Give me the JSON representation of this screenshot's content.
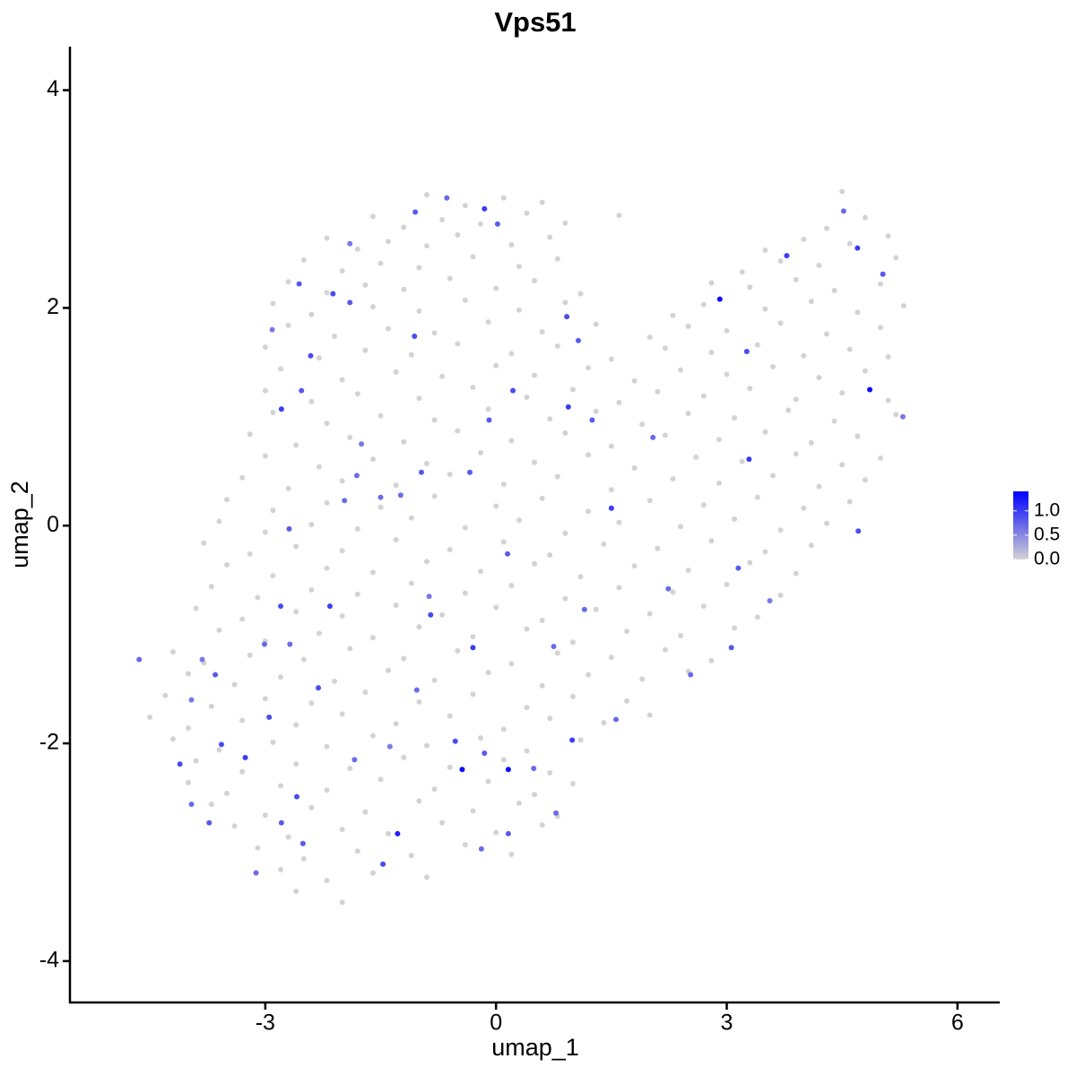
{
  "chart_data": {
    "type": "scatter",
    "title": "Vps51",
    "x_label": "umap_1",
    "y_label": "umap_2",
    "xlim": [
      -5.54,
      6.55
    ],
    "ylim": [
      -4.38,
      4.4
    ],
    "xticks": [
      -3,
      0,
      3,
      6
    ],
    "yticks": [
      -4,
      -2,
      0,
      2,
      4
    ],
    "low_color": "#d3d3d3",
    "high_color": "#0000ff",
    "clim": [
      0,
      1.4
    ],
    "cticks": [
      {
        "value": 0,
        "label": "0.0"
      },
      {
        "value": 0.5,
        "label": "0.5"
      },
      {
        "value": 1,
        "label": "1.0"
      }
    ],
    "x": [
      -0.9,
      -0.4,
      0.1,
      0.6,
      4.5,
      -1.6,
      -1.2,
      -0.7,
      -0.2,
      0.4,
      0.9,
      1.6,
      4.3,
      4.8,
      -2.2,
      -1.8,
      -1.4,
      -0.9,
      -0.5,
      0.2,
      0.7,
      3.5,
      4.0,
      4.6,
      5.1,
      -2.5,
      -2.0,
      -1.5,
      -1.0,
      -0.3,
      0.3,
      0.8,
      3.2,
      3.7,
      4.2,
      5.2,
      -2.7,
      -2.2,
      -1.7,
      -1.2,
      -0.6,
      0.0,
      0.5,
      1.1,
      2.8,
      3.3,
      3.9,
      4.4,
      5.0,
      -2.9,
      -2.4,
      -1.6,
      -1.0,
      -0.4,
      0.3,
      0.9,
      2.3,
      2.7,
      3.5,
      4.1,
      4.7,
      5.3,
      -2.7,
      -2.1,
      -1.4,
      -0.8,
      -0.1,
      0.6,
      1.3,
      2.0,
      2.5,
      3.0,
      3.7,
      4.3,
      5.0,
      -3.0,
      -2.3,
      -1.7,
      -1.1,
      -0.5,
      0.2,
      0.8,
      1.5,
      2.2,
      2.8,
      3.4,
      4.0,
      4.6,
      5.1,
      -2.8,
      -2.0,
      -1.3,
      -0.7,
      0.0,
      0.5,
      1.2,
      1.8,
      2.4,
      3.0,
      3.6,
      4.2,
      4.8,
      -3.0,
      -2.4,
      -1.8,
      -1.0,
      -0.3,
      0.4,
      1.0,
      1.6,
      2.1,
      2.7,
      3.3,
      3.9,
      4.5,
      5.1,
      -2.9,
      -2.2,
      -1.5,
      -0.8,
      -0.1,
      0.7,
      1.3,
      1.9,
      2.5,
      3.1,
      3.8,
      4.4,
      5.2,
      -3.2,
      -2.6,
      -1.9,
      -1.2,
      -0.5,
      0.2,
      0.9,
      1.5,
      2.2,
      2.9,
      3.5,
      4.1,
      4.7,
      -3.0,
      -2.3,
      -1.6,
      -0.9,
      -0.2,
      0.5,
      1.2,
      1.8,
      2.6,
      3.2,
      3.9,
      4.5,
      5.0,
      -3.3,
      -2.7,
      -2.0,
      -1.3,
      -0.6,
      0.1,
      0.8,
      1.5,
      2.3,
      2.9,
      3.6,
      4.2,
      4.8,
      -3.5,
      -2.9,
      -2.2,
      -1.5,
      -0.8,
      0.0,
      0.6,
      1.2,
      2.0,
      2.7,
      3.4,
      4.0,
      4.6,
      -3.6,
      -3.0,
      -2.4,
      -1.8,
      -1.1,
      -0.4,
      0.3,
      0.9,
      1.6,
      2.4,
      3.1,
      3.7,
      4.3,
      -3.8,
      -3.2,
      -2.6,
      -2.0,
      -1.3,
      -0.6,
      0.1,
      0.7,
      1.4,
      2.1,
      2.8,
      3.5,
      4.1,
      -3.5,
      -2.9,
      -2.2,
      -1.6,
      -0.9,
      -0.2,
      0.5,
      1.1,
      1.8,
      2.5,
      3.3,
      3.9,
      -3.7,
      -3.1,
      -2.4,
      -1.8,
      -1.1,
      -0.4,
      0.2,
      0.9,
      1.6,
      2.3,
      3.0,
      3.7,
      -3.9,
      -3.3,
      -2.6,
      -2.0,
      -1.3,
      -0.7,
      0.0,
      0.6,
      1.3,
      2.0,
      2.7,
      3.4,
      -3.6,
      -3.0,
      -2.3,
      -1.6,
      -1.0,
      -0.3,
      0.4,
      1.0,
      1.7,
      2.4,
      3.1,
      -4.2,
      -3.8,
      -3.2,
      -2.5,
      -1.9,
      -1.2,
      -0.5,
      0.2,
      0.8,
      1.5,
      2.2,
      2.8,
      -4.0,
      -3.4,
      -2.8,
      -2.1,
      -1.4,
      -0.8,
      -0.1,
      0.6,
      1.2,
      1.9,
      2.5,
      -4.3,
      -3.7,
      -3.0,
      -2.4,
      -1.7,
      -1.0,
      -0.3,
      0.4,
      1.0,
      1.7,
      -4.5,
      -4.0,
      -3.3,
      -2.6,
      -2.0,
      -1.3,
      -0.6,
      0.1,
      0.7,
      1.4,
      2.0,
      -4.2,
      -3.6,
      -2.9,
      -2.2,
      -1.6,
      -0.9,
      -0.2,
      0.4,
      1.1,
      -3.9,
      -3.3,
      -2.6,
      -1.9,
      -1.2,
      -0.6,
      0.1,
      0.7,
      -4.0,
      -3.5,
      -2.8,
      -2.2,
      -1.5,
      -0.8,
      -0.1,
      0.5,
      1.0,
      -3.7,
      -3.0,
      -2.4,
      -1.7,
      -1.0,
      -0.3,
      0.3,
      0.8,
      -3.4,
      -2.7,
      -2.0,
      -1.4,
      -0.7,
      0.0,
      0.6,
      -3.1,
      -2.5,
      -1.8,
      -1.1,
      -0.4,
      0.2,
      -2.8,
      -2.2,
      -1.6,
      -0.9,
      -2.6,
      -2.0,
      -1.05,
      -0.15,
      0.02,
      -0.64,
      -1.9,
      -2.56,
      -2.12,
      -1.9,
      -2.91,
      -2.41,
      -1.06,
      -2.79,
      -2.53,
      0.92,
      1.07,
      0.22,
      -0.09,
      1.25,
      0.94,
      2.04,
      1.5,
      2.91,
      3.78,
      3.26,
      4.86,
      4.71,
      4.7,
      4.52,
      5.03,
      5.29,
      3.29,
      3.15,
      3.06,
      3.56,
      2.53,
      2.24,
      1.56,
      0.99,
      0.49,
      0.16,
      -0.44,
      -0.53,
      -0.15,
      -1.28,
      -1.47,
      -2.51,
      -2.79,
      -3.26,
      -3.57,
      -4.11,
      -3.96,
      -3.73,
      -3.12,
      -2.59,
      -2.31,
      -2.8,
      -3.01,
      -2.95,
      -3.65,
      -3.96,
      -3.82,
      -4.64,
      -2.16,
      -2.68,
      -2.69,
      -1.97,
      -0.85,
      -0.3,
      0.15,
      1.15,
      0.75,
      -1.24,
      -0.97,
      -1.5,
      -1.81,
      -1.75,
      -0.34,
      -0.87,
      -1.03,
      -1.84,
      -1.38,
      0.78,
      0.16,
      -0.19
    ],
    "y": [
      3.04,
      2.94,
      3.01,
      2.97,
      3.07,
      2.84,
      2.74,
      2.81,
      2.77,
      2.87,
      2.78,
      2.85,
      2.73,
      2.83,
      2.64,
      2.54,
      2.61,
      2.57,
      2.67,
      2.58,
      2.65,
      2.53,
      2.63,
      2.59,
      2.66,
      2.44,
      2.34,
      2.41,
      2.37,
      2.47,
      2.38,
      2.45,
      2.33,
      2.43,
      2.39,
      2.46,
      2.24,
      2.14,
      2.21,
      2.17,
      2.27,
      2.18,
      2.25,
      2.13,
      2.23,
      2.19,
      2.26,
      2.16,
      2.22,
      2.04,
      1.94,
      2.01,
      1.97,
      2.07,
      1.98,
      2.05,
      1.93,
      2.03,
      1.99,
      2.06,
      1.96,
      2.02,
      1.84,
      1.74,
      1.81,
      1.77,
      1.87,
      1.78,
      1.85,
      1.73,
      1.83,
      1.79,
      1.86,
      1.76,
      1.82,
      1.64,
      1.54,
      1.61,
      1.57,
      1.67,
      1.58,
      1.65,
      1.53,
      1.63,
      1.59,
      1.66,
      1.56,
      1.62,
      1.55,
      1.44,
      1.34,
      1.41,
      1.37,
      1.47,
      1.38,
      1.45,
      1.33,
      1.43,
      1.39,
      1.46,
      1.36,
      1.42,
      1.24,
      1.14,
      1.21,
      1.17,
      1.27,
      1.18,
      1.25,
      1.13,
      1.23,
      1.19,
      1.26,
      1.16,
      1.22,
      1.15,
      1.04,
      0.94,
      1.01,
      0.97,
      1.07,
      0.98,
      1.05,
      0.93,
      1.03,
      0.99,
      1.06,
      0.96,
      1.02,
      0.84,
      0.74,
      0.81,
      0.77,
      0.87,
      0.78,
      0.85,
      0.73,
      0.83,
      0.79,
      0.86,
      0.76,
      0.82,
      0.64,
      0.54,
      0.61,
      0.57,
      0.67,
      0.58,
      0.65,
      0.53,
      0.63,
      0.59,
      0.66,
      0.56,
      0.62,
      0.44,
      0.34,
      0.41,
      0.37,
      0.47,
      0.38,
      0.45,
      0.33,
      0.43,
      0.39,
      0.46,
      0.36,
      0.42,
      0.24,
      0.14,
      0.21,
      0.17,
      0.27,
      0.18,
      0.25,
      0.13,
      0.23,
      0.19,
      0.26,
      0.16,
      0.22,
      0.04,
      -0.06,
      0.01,
      -0.03,
      0.07,
      -0.02,
      0.05,
      -0.07,
      0.03,
      -0.01,
      0.06,
      -0.04,
      0.02,
      -0.16,
      -0.26,
      -0.19,
      -0.23,
      -0.13,
      -0.22,
      -0.15,
      -0.27,
      -0.17,
      -0.21,
      -0.14,
      -0.24,
      -0.18,
      -0.36,
      -0.46,
      -0.39,
      -0.43,
      -0.33,
      -0.42,
      -0.35,
      -0.47,
      -0.37,
      -0.41,
      -0.34,
      -0.44,
      -0.56,
      -0.66,
      -0.59,
      -0.63,
      -0.53,
      -0.62,
      -0.55,
      -0.67,
      -0.57,
      -0.61,
      -0.54,
      -0.64,
      -0.76,
      -0.86,
      -0.79,
      -0.83,
      -0.73,
      -0.82,
      -0.75,
      -0.87,
      -0.77,
      -0.81,
      -0.74,
      -0.84,
      -0.96,
      -1.06,
      -0.99,
      -1.03,
      -0.93,
      -1.02,
      -0.95,
      -1.07,
      -0.97,
      -1.01,
      -0.94,
      -1.16,
      -1.26,
      -1.19,
      -1.23,
      -1.13,
      -1.22,
      -1.15,
      -1.27,
      -1.17,
      -1.21,
      -1.14,
      -1.24,
      -1.36,
      -1.46,
      -1.39,
      -1.43,
      -1.33,
      -1.42,
      -1.35,
      -1.47,
      -1.37,
      -1.41,
      -1.34,
      -1.56,
      -1.66,
      -1.59,
      -1.63,
      -1.53,
      -1.62,
      -1.55,
      -1.67,
      -1.57,
      -1.61,
      -1.76,
      -1.86,
      -1.79,
      -1.83,
      -1.73,
      -1.82,
      -1.75,
      -1.87,
      -1.77,
      -1.81,
      -1.74,
      -1.96,
      -2.06,
      -1.99,
      -2.03,
      -1.93,
      -2.02,
      -1.95,
      -2.07,
      -1.97,
      -2.16,
      -2.26,
      -2.19,
      -2.23,
      -2.13,
      -2.22,
      -2.15,
      -2.27,
      -2.36,
      -2.46,
      -2.39,
      -2.43,
      -2.33,
      -2.42,
      -2.35,
      -2.47,
      -2.37,
      -2.56,
      -2.66,
      -2.59,
      -2.63,
      -2.53,
      -2.62,
      -2.55,
      -2.67,
      -2.76,
      -2.86,
      -2.79,
      -2.83,
      -2.73,
      -2.82,
      -2.75,
      -2.96,
      -3.06,
      -2.99,
      -3.03,
      -2.93,
      -3.02,
      -3.16,
      -3.26,
      -3.19,
      -3.23,
      -3.36,
      -3.46,
      2.88,
      2.91,
      2.77,
      3.01,
      2.59,
      2.22,
      2.13,
      2.05,
      1.8,
      1.56,
      1.74,
      1.07,
      1.24,
      1.92,
      1.7,
      1.24,
      0.97,
      0.97,
      1.09,
      0.81,
      0.16,
      2.08,
      2.48,
      1.6,
      1.25,
      -0.05,
      2.55,
      2.89,
      2.31,
      1.0,
      0.61,
      -0.39,
      -1.12,
      -0.69,
      -1.37,
      -0.58,
      -1.78,
      -1.97,
      -2.23,
      -2.24,
      -2.24,
      -1.98,
      -2.09,
      -2.83,
      -3.11,
      -2.92,
      -2.73,
      -2.13,
      -2.01,
      -2.19,
      -2.56,
      -2.73,
      -3.19,
      -2.49,
      -1.49,
      -0.74,
      -1.09,
      -1.76,
      -1.37,
      -1.6,
      -1.23,
      -1.23,
      -0.74,
      -1.09,
      -0.03,
      0.23,
      -0.82,
      -1.12,
      -0.26,
      -0.77,
      -1.11,
      0.28,
      0.49,
      0.26,
      0.46,
      0.75,
      0.49,
      -0.65,
      -1.51,
      -2.15,
      -2.03,
      -2.64,
      -2.83,
      -2.97
    ],
    "values": [
      0,
      0,
      0,
      0,
      0,
      0,
      0,
      0,
      0,
      0,
      0,
      0,
      0,
      0,
      0,
      0,
      0,
      0,
      0,
      0,
      0,
      0,
      0,
      0,
      0,
      0,
      0,
      0,
      0,
      0,
      0,
      0,
      0,
      0,
      0,
      0,
      0,
      0,
      0,
      0,
      0,
      0,
      0,
      0,
      0,
      0,
      0,
      0,
      0,
      0,
      0,
      0,
      0,
      0,
      0,
      0,
      0,
      0,
      0,
      0,
      0,
      0,
      0,
      0,
      0,
      0,
      0,
      0,
      0,
      0,
      0,
      0,
      0,
      0,
      0,
      0,
      0,
      0,
      0,
      0,
      0,
      0,
      0,
      0,
      0,
      0,
      0,
      0,
      0,
      0,
      0,
      0,
      0,
      0,
      0,
      0,
      0,
      0,
      0,
      0,
      0,
      0,
      0,
      0,
      0,
      0,
      0,
      0,
      0,
      0,
      0,
      0,
      0,
      0,
      0,
      0,
      0,
      0,
      0,
      0,
      0,
      0,
      0,
      0,
      0,
      0,
      0,
      0,
      0,
      0,
      0,
      0,
      0,
      0,
      0,
      0,
      0,
      0,
      0,
      0,
      0,
      0,
      0,
      0,
      0,
      0,
      0,
      0,
      0,
      0,
      0,
      0,
      0,
      0,
      0,
      0,
      0,
      0,
      0,
      0,
      0,
      0,
      0,
      0,
      0,
      0,
      0,
      0,
      0,
      0,
      0,
      0,
      0,
      0,
      0,
      0,
      0,
      0,
      0,
      0,
      0,
      0,
      0,
      0,
      0,
      0,
      0,
      0,
      0,
      0,
      0,
      0,
      0,
      0,
      0,
      0,
      0,
      0,
      0,
      0,
      0,
      0,
      0,
      0,
      0,
      0,
      0,
      0,
      0,
      0,
      0,
      0,
      0,
      0,
      0,
      0,
      0,
      0,
      0,
      0,
      0,
      0,
      0,
      0,
      0,
      0,
      0,
      0,
      0,
      0,
      0,
      0,
      0,
      0,
      0,
      0,
      0,
      0,
      0,
      0,
      0,
      0,
      0,
      0,
      0,
      0,
      0,
      0,
      0,
      0,
      0,
      0,
      0,
      0,
      0,
      0,
      0,
      0,
      0,
      0,
      0,
      0,
      0,
      0,
      0,
      0,
      0,
      0,
      0,
      0,
      0,
      0,
      0,
      0,
      0,
      0,
      0,
      0,
      0,
      0,
      0,
      0,
      0,
      0,
      0,
      0,
      0,
      0,
      0,
      0,
      0,
      0,
      0,
      0,
      0,
      0,
      0,
      0,
      0,
      0,
      0,
      0,
      0,
      0,
      0,
      0,
      0,
      0,
      0,
      0,
      0,
      0,
      0,
      0,
      0,
      0,
      0,
      0,
      0,
      0,
      0,
      0,
      0,
      0,
      0,
      0,
      0,
      0,
      0,
      0,
      0,
      0,
      0,
      0,
      0,
      0,
      0,
      0,
      0,
      0,
      0,
      0,
      0,
      0,
      0,
      0,
      0,
      0,
      0,
      0,
      0,
      0.8,
      1.0,
      0.8,
      0.7,
      0.6,
      0.8,
      0.9,
      0.8,
      0.6,
      0.9,
      0.9,
      1.0,
      0.8,
      0.9,
      0.8,
      0.9,
      0.8,
      0.8,
      1.0,
      0.7,
      1.0,
      1.3,
      1.0,
      0.9,
      1.3,
      0.9,
      1.0,
      0.7,
      0.8,
      0.6,
      1.0,
      0.8,
      0.8,
      0.6,
      0.7,
      0.7,
      0.7,
      1.0,
      0.7,
      1.3,
      1.3,
      0.9,
      0.8,
      1.2,
      0.9,
      0.8,
      0.8,
      1.0,
      0.9,
      0.9,
      0.7,
      0.8,
      0.7,
      0.9,
      0.9,
      0.9,
      0.7,
      0.9,
      0.8,
      0.6,
      0.6,
      0.7,
      1.0,
      0.7,
      0.8,
      0.7,
      0.9,
      1.0,
      0.8,
      0.7,
      0.7,
      0.7,
      0.8,
      0.7,
      0.7,
      0.6,
      0.8,
      0.6,
      0.7,
      0.7,
      0.6,
      0.7,
      0.8,
      0.7
    ]
  }
}
